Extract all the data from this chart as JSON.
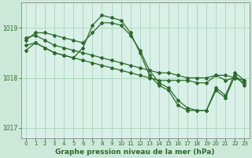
{
  "background_color": "#cce8d8",
  "plot_bg": "#d8f0e8",
  "grid_color": "#b0d8c0",
  "line_color": "#2d6a2d",
  "title": "Graphe pression niveau de la mer (hPa)",
  "title_bg": "#4a7a4a",
  "title_fg": "#ffffff",
  "xlim": [
    -0.5,
    23.5
  ],
  "ylim": [
    1016.8,
    1019.5
  ],
  "yticks": [
    1017,
    1018,
    1019
  ],
  "xticks": [
    0,
    1,
    2,
    3,
    4,
    5,
    6,
    7,
    8,
    9,
    10,
    11,
    12,
    13,
    14,
    15,
    16,
    17,
    18,
    19,
    20,
    21,
    22,
    23
  ],
  "series": [
    {
      "x": [
        0,
        1,
        2,
        3,
        4,
        5,
        6,
        7,
        8,
        9,
        10,
        11,
        12,
        13,
        14,
        15,
        16,
        17,
        18,
        19,
        20,
        21,
        22,
        23
      ],
      "y": [
        1018.8,
        1018.85,
        1018.75,
        1018.65,
        1018.6,
        1018.55,
        1018.5,
        1018.45,
        1018.4,
        1018.35,
        1018.3,
        1018.25,
        1018.2,
        1018.15,
        1018.1,
        1018.1,
        1018.05,
        1018.0,
        1018.0,
        1018.0,
        1018.05,
        1018.05,
        1018.0,
        1017.95
      ]
    },
    {
      "x": [
        0,
        1,
        2,
        3,
        4,
        5,
        6,
        7,
        8,
        9,
        10,
        11,
        12,
        13,
        14,
        15,
        16,
        17,
        18,
        19,
        20,
        21,
        22,
        23
      ],
      "y": [
        1018.65,
        1018.7,
        1018.6,
        1018.5,
        1018.45,
        1018.4,
        1018.35,
        1018.3,
        1018.25,
        1018.2,
        1018.15,
        1018.1,
        1018.05,
        1018.0,
        1017.95,
        1017.95,
        1017.95,
        1017.95,
        1017.9,
        1017.9,
        1018.05,
        1017.95,
        1018.0,
        1017.9
      ]
    },
    {
      "x": [
        0,
        1,
        2,
        3,
        4,
        5,
        6,
        7,
        8,
        9,
        10,
        11,
        12,
        13,
        14,
        15,
        16,
        17,
        18,
        19,
        20,
        21,
        22,
        23
      ],
      "y": [
        1018.55,
        1018.7,
        1018.6,
        1018.5,
        1018.45,
        1018.4,
        1018.6,
        1019.05,
        1019.25,
        1019.2,
        1019.15,
        1018.9,
        1018.5,
        1018.05,
        1017.85,
        1017.75,
        1017.45,
        1017.35,
        1017.35,
        1017.35,
        1017.8,
        1017.65,
        1018.1,
        1017.95
      ]
    },
    {
      "x": [
        0,
        1,
        2,
        3,
        4,
        5,
        6,
        7,
        8,
        9,
        10,
        11,
        12,
        13,
        14,
        15,
        16,
        17,
        18,
        19,
        20,
        21,
        22,
        23
      ],
      "y": [
        1018.75,
        1018.9,
        1018.9,
        1018.85,
        1018.8,
        1018.75,
        1018.7,
        1018.9,
        1019.1,
        1019.1,
        1019.05,
        1018.85,
        1018.55,
        1018.15,
        1017.9,
        1017.8,
        1017.55,
        1017.4,
        1017.35,
        1017.35,
        1017.75,
        1017.6,
        1018.05,
        1017.85
      ]
    }
  ]
}
